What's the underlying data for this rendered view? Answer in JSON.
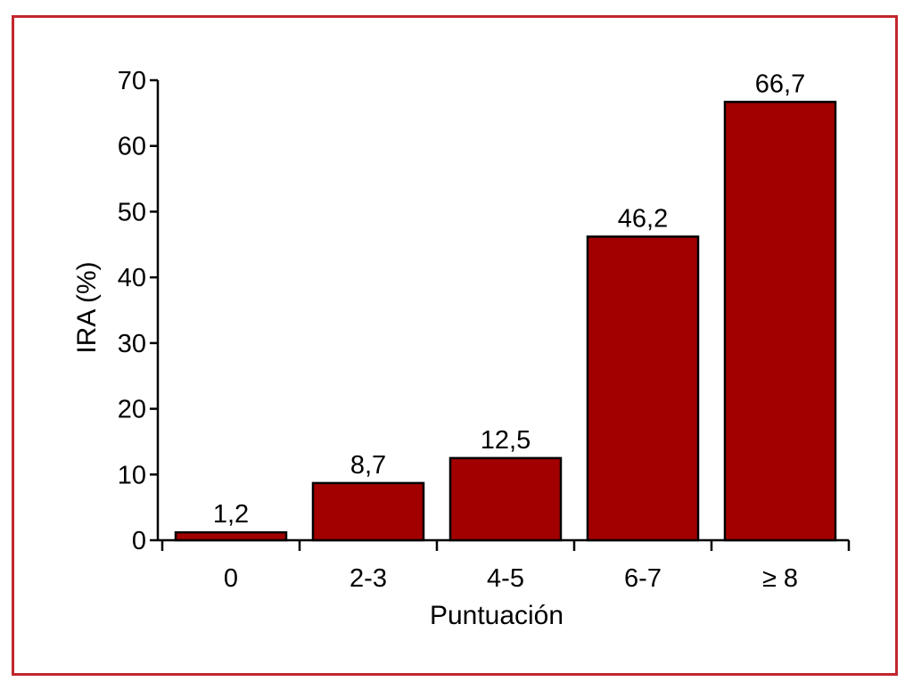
{
  "colors": {
    "frame": "#c1272d",
    "bar_fill": "#a20000",
    "bar_stroke": "#000000",
    "axis": "#000000"
  },
  "chart_data": {
    "type": "bar",
    "categories": [
      "0",
      "2-3",
      "4-5",
      "6-7",
      "≥ 8"
    ],
    "values": [
      1.2,
      8.7,
      12.5,
      46.2,
      66.7
    ],
    "data_labels": [
      "1,2",
      "8,7",
      "12,5",
      "46,2",
      "66,7"
    ],
    "title": "",
    "xlabel": "Puntuación",
    "ylabel": "IRA (%)",
    "ylim": [
      0,
      70
    ],
    "yticks": [
      0,
      10,
      20,
      30,
      40,
      50,
      60,
      70
    ],
    "grid": false,
    "legend": "none"
  }
}
